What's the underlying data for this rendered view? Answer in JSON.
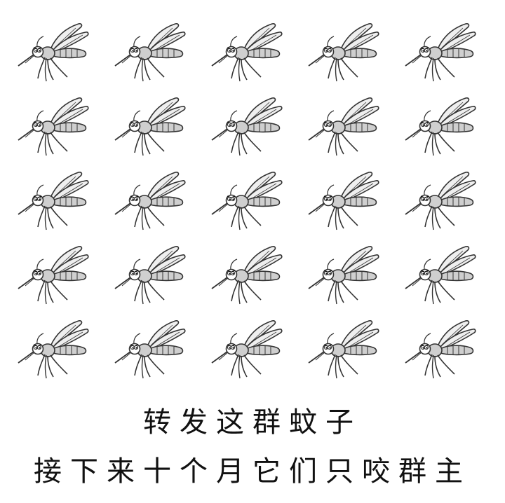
{
  "mosquito_grid": {
    "rows": 5,
    "columns": 5,
    "icon": "mosquito-icon"
  },
  "caption": {
    "line1": "转发这群蚊子",
    "line2": "接下来十个月它们只咬群主"
  },
  "colors": {
    "background": "#ffffff",
    "text": "#111111",
    "outline": "#333333",
    "body_fill": "#cfcfcf",
    "wing_fill": "#efefef"
  }
}
